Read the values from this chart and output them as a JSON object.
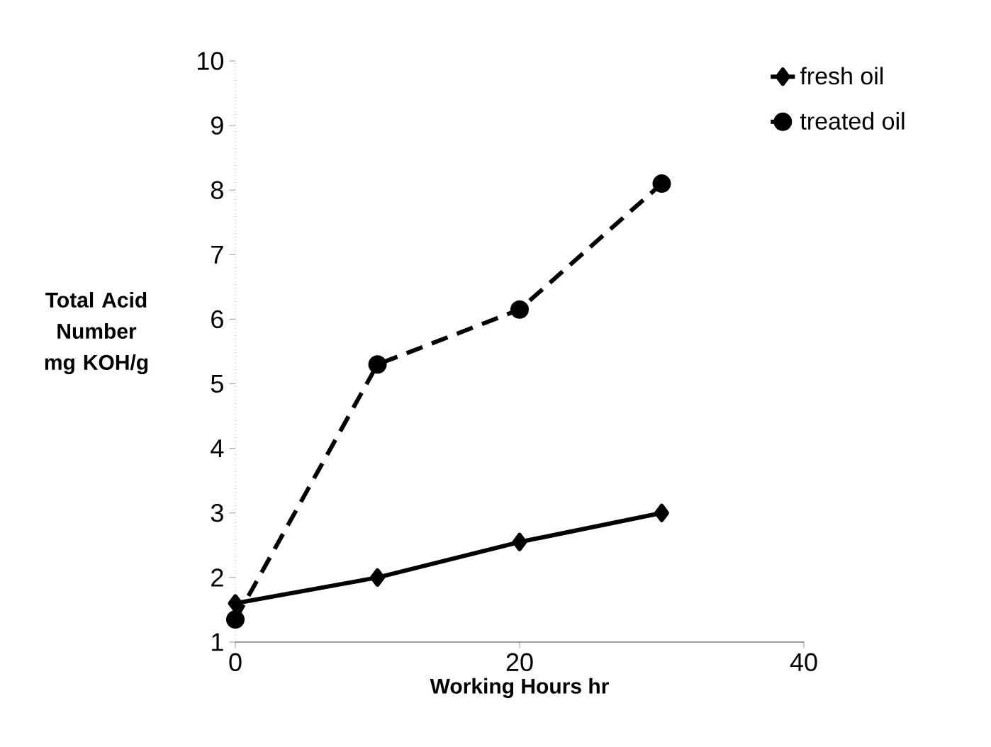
{
  "chart_data": {
    "type": "line",
    "xlabel": "Working Hours hr",
    "ylabel": "Total Acid Number mg KOH/g",
    "x": [
      0,
      10,
      20,
      30
    ],
    "series": [
      {
        "name": "fresh oil",
        "color": "#000000",
        "marker": "diamond",
        "line_style": "solid",
        "values": [
          1.6,
          2.0,
          2.55,
          3.0
        ]
      },
      {
        "name": "treated oil",
        "color": "#000000",
        "marker": "circle",
        "line_style": "dashed",
        "values": [
          1.35,
          5.3,
          6.15,
          8.1
        ]
      }
    ],
    "xlim": [
      0,
      40
    ],
    "xticks": [
      0,
      20,
      40
    ],
    "ylim": [
      1,
      10
    ],
    "yticks": [
      1,
      2,
      3,
      4,
      5,
      6,
      7,
      8,
      9,
      10
    ],
    "grid": false,
    "legend": "top right"
  }
}
